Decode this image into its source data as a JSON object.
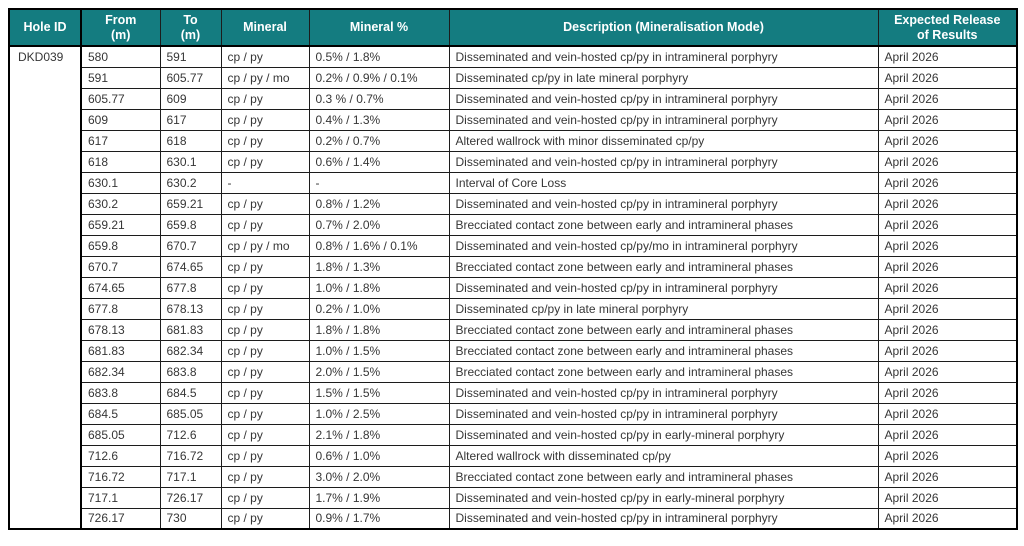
{
  "colors": {
    "header_bg": "#147c80",
    "header_text": "#ffffff",
    "body_text": "#363636",
    "border": "#000000"
  },
  "table": {
    "headers": [
      {
        "id": "hole-id",
        "lines": [
          "Hole ID"
        ]
      },
      {
        "id": "from",
        "lines": [
          "From",
          "(m)"
        ]
      },
      {
        "id": "to",
        "lines": [
          "To",
          "(m)"
        ]
      },
      {
        "id": "mineral",
        "lines": [
          "Mineral"
        ]
      },
      {
        "id": "mineral-pct",
        "lines": [
          "Mineral %"
        ]
      },
      {
        "id": "description",
        "lines": [
          "Description (Mineralisation Mode)"
        ]
      },
      {
        "id": "expected-release",
        "lines": [
          "Expected Release",
          "of Results"
        ]
      }
    ],
    "hole_id": "DKD039",
    "rows": [
      {
        "from": "580",
        "to": "591",
        "mineral": "cp / py",
        "mineral_pct": "0.5% / 1.8%",
        "description": "Disseminated and vein-hosted cp/py in intramineral porphyry",
        "release": "April 2026"
      },
      {
        "from": "591",
        "to": "605.77",
        "mineral": "cp / py / mo",
        "mineral_pct": "0.2% / 0.9% / 0.1%",
        "description": "Disseminated cp/py in late mineral porphyry",
        "release": "April 2026"
      },
      {
        "from": "605.77",
        "to": "609",
        "mineral": "cp / py",
        "mineral_pct": "0.3 % / 0.7%",
        "description": "Disseminated and vein-hosted cp/py in intramineral porphyry",
        "release": "April 2026"
      },
      {
        "from": "609",
        "to": "617",
        "mineral": "cp / py",
        "mineral_pct": "0.4% / 1.3%",
        "description": "Disseminated and vein-hosted cp/py in intramineral porphyry",
        "release": "April 2026"
      },
      {
        "from": "617",
        "to": "618",
        "mineral": "cp / py",
        "mineral_pct": "0.2% / 0.7%",
        "description": "Altered wallrock with minor disseminated cp/py",
        "release": "April 2026"
      },
      {
        "from": "618",
        "to": "630.1",
        "mineral": "cp / py",
        "mineral_pct": "0.6% / 1.4%",
        "description": "Disseminated and vein-hosted cp/py in intramineral porphyry",
        "release": "April 2026"
      },
      {
        "from": "630.1",
        "to": "630.2",
        "mineral": "-",
        "mineral_pct": "-",
        "description": "Interval of Core Loss",
        "release": "April 2026"
      },
      {
        "from": "630.2",
        "to": "659.21",
        "mineral": "cp / py",
        "mineral_pct": "0.8% / 1.2%",
        "description": "Disseminated and vein-hosted cp/py in intramineral porphyry",
        "release": "April 2026"
      },
      {
        "from": "659.21",
        "to": "659.8",
        "mineral": "cp / py",
        "mineral_pct": "0.7% / 2.0%",
        "description": "Brecciated contact zone between early and intramineral phases",
        "release": "April 2026"
      },
      {
        "from": "659.8",
        "to": "670.7",
        "mineral": "cp / py / mo",
        "mineral_pct": "0.8% / 1.6% / 0.1%",
        "description": "Disseminated and vein-hosted cp/py/mo in intramineral porphyry",
        "release": "April 2026"
      },
      {
        "from": "670.7",
        "to": "674.65",
        "mineral": "cp / py",
        "mineral_pct": "1.8% / 1.3%",
        "description": "Brecciated contact zone between early and intramineral phases",
        "release": "April 2026"
      },
      {
        "from": "674.65",
        "to": "677.8",
        "mineral": "cp / py",
        "mineral_pct": "1.0% / 1.8%",
        "description": "Disseminated and vein-hosted cp/py in intramineral porphyry",
        "release": "April 2026"
      },
      {
        "from": "677.8",
        "to": "678.13",
        "mineral": "cp / py",
        "mineral_pct": "0.2% / 1.0%",
        "description": "Disseminated cp/py in late mineral porphyry",
        "release": "April 2026"
      },
      {
        "from": "678.13",
        "to": "681.83",
        "mineral": "cp / py",
        "mineral_pct": "1.8% / 1.8%",
        "description": "Brecciated contact zone between early and intramineral phases",
        "release": "April 2026"
      },
      {
        "from": "681.83",
        "to": "682.34",
        "mineral": "cp / py",
        "mineral_pct": "1.0% / 1.5%",
        "description": "Brecciated contact zone between early and intramineral phases",
        "release": "April 2026"
      },
      {
        "from": "682.34",
        "to": "683.8",
        "mineral": "cp / py",
        "mineral_pct": "2.0% / 1.5%",
        "description": "Brecciated contact zone between early and intramineral phases",
        "release": "April 2026"
      },
      {
        "from": "683.8",
        "to": "684.5",
        "mineral": "cp / py",
        "mineral_pct": "1.5% / 1.5%",
        "description": "Disseminated and vein-hosted cp/py in intramineral porphyry",
        "release": "April 2026"
      },
      {
        "from": "684.5",
        "to": "685.05",
        "mineral": "cp / py",
        "mineral_pct": "1.0% / 2.5%",
        "description": "Disseminated and vein-hosted cp/py in intramineral porphyry",
        "release": "April 2026"
      },
      {
        "from": "685.05",
        "to": "712.6",
        "mineral": "cp / py",
        "mineral_pct": "2.1% / 1.8%",
        "description": "Disseminated and vein-hosted cp/py in early-mineral porphyry",
        "release": "April 2026"
      },
      {
        "from": "712.6",
        "to": "716.72",
        "mineral": "cp / py",
        "mineral_pct": "0.6% / 1.0%",
        "description": "Altered wallrock with disseminated cp/py",
        "release": "April 2026"
      },
      {
        "from": "716.72",
        "to": "717.1",
        "mineral": "cp / py",
        "mineral_pct": "3.0% / 2.0%",
        "description": "Brecciated contact zone between early and intramineral phases",
        "release": "April 2026"
      },
      {
        "from": "717.1",
        "to": "726.17",
        "mineral": "cp / py",
        "mineral_pct": "1.7% / 1.9%",
        "description": "Disseminated and vein-hosted cp/py in early-mineral porphyry",
        "release": "April 2026"
      },
      {
        "from": "726.17",
        "to": "730",
        "mineral": "cp / py",
        "mineral_pct": "0.9% / 1.7%",
        "description": "Disseminated and vein-hosted cp/py in intramineral porphyry",
        "release": "April 2026"
      }
    ]
  }
}
